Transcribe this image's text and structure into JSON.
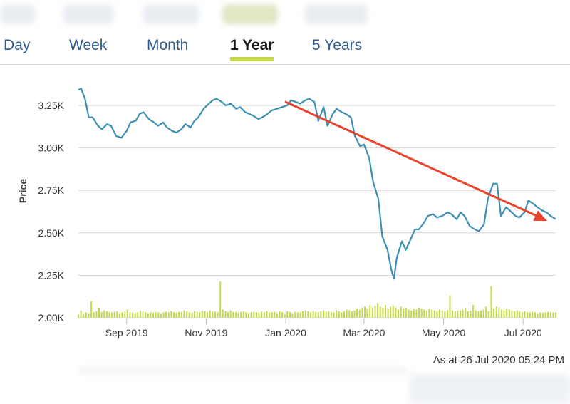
{
  "tabs": [
    {
      "label": "Day"
    },
    {
      "label": "Week"
    },
    {
      "label": "Month"
    },
    {
      "label": "1 Year",
      "active": true
    },
    {
      "label": "5 Years"
    }
  ],
  "timestamp": "As at 26 Jul 2020 05:24 PM",
  "colors": {
    "price_line": "#3d90b3",
    "volume_bar": "#c6d94a",
    "trend_arrow": "#e8442e",
    "tab_text": "#2f5c8f",
    "active_tab_underline": "#c6d94a",
    "gridline": "#d6d6d6"
  },
  "chart_data": {
    "type": "line",
    "ylabel": "Price",
    "xlabel": "",
    "y_ticks": [
      "2.00K",
      "2.25K",
      "2.50K",
      "2.75K",
      "3.00K",
      "3.25K"
    ],
    "y_tick_values": [
      2000,
      2250,
      2500,
      2750,
      3000,
      3250
    ],
    "ylim": [
      2000,
      3250
    ],
    "x_ticks": [
      "Sep 2019",
      "Nov 2019",
      "Jan 2020",
      "Mar 2020",
      "May 2020",
      "Jul 2020"
    ],
    "x_tick_dates": [
      "2019-09-01",
      "2019-11-01",
      "2020-01-01",
      "2020-03-01",
      "2020-05-01",
      "2020-07-01"
    ],
    "xlim": [
      "2019-07-26",
      "2020-07-26"
    ],
    "grid": true,
    "series": [
      {
        "points": [
          [
            "2019-07-26",
            3340
          ],
          [
            "2019-07-28",
            3350
          ],
          [
            "2019-07-31",
            3290
          ],
          [
            "2019-08-03",
            3180
          ],
          [
            "2019-08-06",
            3180
          ],
          [
            "2019-08-10",
            3130
          ],
          [
            "2019-08-13",
            3110
          ],
          [
            "2019-08-17",
            3140
          ],
          [
            "2019-08-20",
            3130
          ],
          [
            "2019-08-24",
            3070
          ],
          [
            "2019-08-28",
            3060
          ],
          [
            "2019-09-01",
            3100
          ],
          [
            "2019-09-04",
            3150
          ],
          [
            "2019-09-08",
            3160
          ],
          [
            "2019-09-11",
            3200
          ],
          [
            "2019-09-14",
            3210
          ],
          [
            "2019-09-18",
            3170
          ],
          [
            "2019-09-22",
            3150
          ],
          [
            "2019-09-25",
            3130
          ],
          [
            "2019-09-29",
            3150
          ],
          [
            "2019-10-02",
            3120
          ],
          [
            "2019-10-06",
            3100
          ],
          [
            "2019-10-09",
            3090
          ],
          [
            "2019-10-13",
            3110
          ],
          [
            "2019-10-16",
            3140
          ],
          [
            "2019-10-20",
            3120
          ],
          [
            "2019-10-23",
            3160
          ],
          [
            "2019-10-26",
            3180
          ],
          [
            "2019-10-30",
            3230
          ],
          [
            "2019-11-03",
            3260
          ],
          [
            "2019-11-06",
            3280
          ],
          [
            "2019-11-09",
            3290
          ],
          [
            "2019-11-13",
            3270
          ],
          [
            "2019-11-16",
            3250
          ],
          [
            "2019-11-20",
            3260
          ],
          [
            "2019-11-24",
            3230
          ],
          [
            "2019-11-27",
            3240
          ],
          [
            "2019-12-01",
            3210
          ],
          [
            "2019-12-04",
            3200
          ],
          [
            "2019-12-07",
            3190
          ],
          [
            "2019-12-11",
            3170
          ],
          [
            "2019-12-14",
            3180
          ],
          [
            "2019-12-18",
            3200
          ],
          [
            "2019-12-21",
            3220
          ],
          [
            "2019-12-25",
            3230
          ],
          [
            "2019-12-29",
            3240
          ],
          [
            "2020-01-02",
            3250
          ],
          [
            "2020-01-05",
            3280
          ],
          [
            "2020-01-09",
            3270
          ],
          [
            "2020-01-12",
            3260
          ],
          [
            "2020-01-16",
            3280
          ],
          [
            "2020-01-19",
            3290
          ],
          [
            "2020-01-23",
            3270
          ],
          [
            "2020-01-26",
            3160
          ],
          [
            "2020-01-30",
            3240
          ],
          [
            "2020-02-02",
            3130
          ],
          [
            "2020-02-06",
            3200
          ],
          [
            "2020-02-09",
            3230
          ],
          [
            "2020-02-13",
            3210
          ],
          [
            "2020-02-16",
            3200
          ],
          [
            "2020-02-20",
            3180
          ],
          [
            "2020-02-23",
            3070
          ],
          [
            "2020-02-27",
            3010
          ],
          [
            "2020-03-01",
            3020
          ],
          [
            "2020-03-05",
            2940
          ],
          [
            "2020-03-08",
            2800
          ],
          [
            "2020-03-12",
            2700
          ],
          [
            "2020-03-15",
            2480
          ],
          [
            "2020-03-19",
            2400
          ],
          [
            "2020-03-22",
            2280
          ],
          [
            "2020-03-24",
            2230
          ],
          [
            "2020-03-26",
            2350
          ],
          [
            "2020-03-30",
            2450
          ],
          [
            "2020-04-02",
            2400
          ],
          [
            "2020-04-05",
            2450
          ],
          [
            "2020-04-09",
            2520
          ],
          [
            "2020-04-12",
            2520
          ],
          [
            "2020-04-16",
            2560
          ],
          [
            "2020-04-19",
            2600
          ],
          [
            "2020-04-23",
            2610
          ],
          [
            "2020-04-26",
            2590
          ],
          [
            "2020-04-30",
            2600
          ],
          [
            "2020-05-04",
            2620
          ],
          [
            "2020-05-07",
            2610
          ],
          [
            "2020-05-11",
            2580
          ],
          [
            "2020-05-14",
            2620
          ],
          [
            "2020-05-17",
            2600
          ],
          [
            "2020-05-21",
            2540
          ],
          [
            "2020-05-25",
            2520
          ],
          [
            "2020-05-28",
            2510
          ],
          [
            "2020-06-01",
            2550
          ],
          [
            "2020-06-04",
            2700
          ],
          [
            "2020-06-08",
            2790
          ],
          [
            "2020-06-11",
            2790
          ],
          [
            "2020-06-14",
            2600
          ],
          [
            "2020-06-18",
            2650
          ],
          [
            "2020-06-21",
            2630
          ],
          [
            "2020-06-25",
            2600
          ],
          [
            "2020-06-28",
            2590
          ],
          [
            "2020-07-02",
            2620
          ],
          [
            "2020-07-05",
            2690
          ],
          [
            "2020-07-09",
            2670
          ],
          [
            "2020-07-12",
            2650
          ],
          [
            "2020-07-16",
            2630
          ],
          [
            "2020-07-19",
            2620
          ],
          [
            "2020-07-22",
            2600
          ],
          [
            "2020-07-26",
            2580
          ]
        ]
      }
    ],
    "volume_relative": [
      0.18,
      0.4,
      0.22,
      0.3,
      0.25,
      0.9,
      0.3,
      0.35,
      0.55,
      0.32,
      0.4,
      0.35,
      0.3,
      0.28,
      0.32,
      0.35,
      0.25,
      0.3,
      0.35,
      0.45,
      0.3,
      0.28,
      0.25,
      0.3,
      0.4,
      0.35,
      0.3,
      0.25,
      0.3,
      0.28,
      0.32,
      0.3,
      0.25,
      0.28,
      0.33,
      0.3,
      0.35,
      0.3,
      0.28,
      0.32,
      0.3,
      0.4,
      0.35,
      0.3,
      0.28,
      0.35,
      0.32,
      0.3,
      0.38,
      0.35,
      0.3,
      0.4,
      0.35,
      0.33,
      0.3,
      1.95,
      0.45,
      0.35,
      0.3,
      0.4,
      0.32,
      0.3,
      0.28,
      0.32,
      0.35,
      0.3,
      0.25,
      0.3,
      0.32,
      0.3,
      0.28,
      0.33,
      0.3,
      0.35,
      0.28,
      0.3,
      0.32,
      0.25,
      0.35,
      0.3,
      0.2,
      0.35,
      0.3,
      0.25,
      0.33,
      0.3,
      0.3,
      0.35,
      0.4,
      0.35,
      0.3,
      0.35,
      0.32,
      0.3,
      0.35,
      0.4,
      0.33,
      0.35,
      0.3,
      0.28,
      0.4,
      0.35,
      0.3,
      0.35,
      0.45,
      0.4,
      0.35,
      0.4,
      0.5,
      0.45,
      0.55,
      0.6,
      0.5,
      0.7,
      0.55,
      0.65,
      0.8,
      0.6,
      0.55,
      0.7,
      0.5,
      0.6,
      0.65,
      0.55,
      0.45,
      0.6,
      0.5,
      0.55,
      0.45,
      0.4,
      0.5,
      0.45,
      0.55,
      0.5,
      0.45,
      0.4,
      0.5,
      0.45,
      0.4,
      0.35,
      0.45,
      0.4,
      0.35,
      0.42,
      1.2,
      0.4,
      0.35,
      0.38,
      0.4,
      0.45,
      0.55,
      0.35,
      0.38,
      0.7,
      0.4,
      0.35,
      0.4,
      0.45,
      0.6,
      0.35,
      1.7,
      0.5,
      0.6,
      0.55,
      0.45,
      0.4,
      0.5,
      0.45,
      0.4,
      0.35,
      0.4,
      0.32,
      0.3,
      0.35,
      0.3,
      0.28,
      0.32,
      0.3,
      0.25,
      0.3,
      0.28,
      0.3,
      0.32,
      0.3,
      0.28,
      0.3
    ],
    "annotations": [
      {
        "type": "trend-arrow",
        "from": [
          "2020-01-01",
          3270
        ],
        "to": [
          "2020-07-26",
          2570
        ]
      }
    ]
  }
}
